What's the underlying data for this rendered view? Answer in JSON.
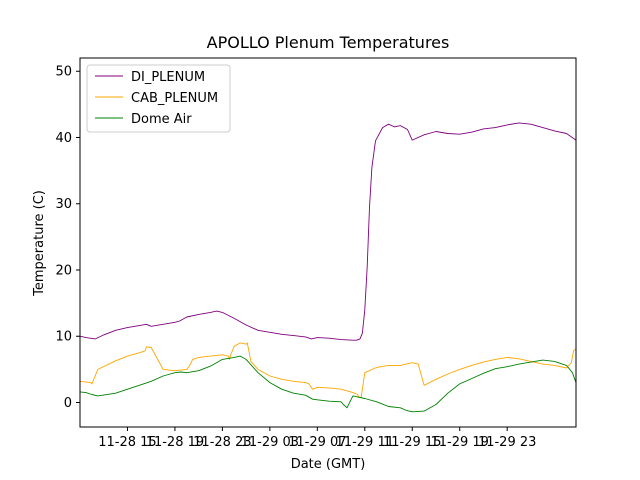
{
  "chart_data": {
    "type": "line",
    "title": "APOLLO Plenum Temperatures",
    "xlabel": "Date (GMT)",
    "ylabel": "Temperature (C)",
    "xlim": [
      0,
      41.8
    ],
    "ylim": [
      -3.7,
      52
    ],
    "grid": false,
    "legend_position": "top-left",
    "x_ticks": [
      {
        "x": 4,
        "label": "11-28 15"
      },
      {
        "x": 8,
        "label": "11-28 19"
      },
      {
        "x": 12,
        "label": "11-28 23"
      },
      {
        "x": 16,
        "label": "11-29 03"
      },
      {
        "x": 20,
        "label": "11-29 07"
      },
      {
        "x": 24,
        "label": "11-29 11"
      },
      {
        "x": 28,
        "label": "11-29 15"
      },
      {
        "x": 32,
        "label": "11-29 19"
      },
      {
        "x": 36,
        "label": "11-29 23"
      }
    ],
    "y_ticks": [
      0,
      10,
      20,
      30,
      40,
      50
    ],
    "series": [
      {
        "name": "DI_PLENUM",
        "color": "#800080",
        "x": [
          0,
          0.5,
          1.3,
          2,
          3,
          4,
          5,
          5.6,
          6,
          7,
          8,
          8.4,
          9,
          10,
          11,
          11.5,
          12,
          13,
          14,
          15,
          16,
          17,
          18,
          19,
          19.5,
          20,
          21,
          22,
          23,
          23.3,
          23.6,
          23.8,
          24.0,
          24.2,
          24.4,
          24.6,
          24.9,
          25.5,
          26,
          26.5,
          27,
          27.6,
          28,
          29,
          30,
          31,
          32,
          33,
          34,
          35,
          36,
          37,
          38,
          39,
          40,
          41,
          41.8
        ],
        "y": [
          10.0,
          9.8,
          9.6,
          10.2,
          10.9,
          11.3,
          11.6,
          11.8,
          11.5,
          11.8,
          12.1,
          12.3,
          12.9,
          13.3,
          13.6,
          13.8,
          13.6,
          12.7,
          11.7,
          10.9,
          10.6,
          10.3,
          10.1,
          9.9,
          9.6,
          9.8,
          9.7,
          9.5,
          9.4,
          9.4,
          9.6,
          10.5,
          14.0,
          20.5,
          29.5,
          35.5,
          39.5,
          41.5,
          42.0,
          41.6,
          41.8,
          41.2,
          39.6,
          40.4,
          40.9,
          40.6,
          40.5,
          40.8,
          41.3,
          41.5,
          41.9,
          42.2,
          42.0,
          41.5,
          41.0,
          40.6,
          39.6
        ]
      },
      {
        "name": "CAB_PLENUM",
        "color": "#ffa500",
        "x": [
          0,
          0.9,
          1.0,
          1.5,
          3,
          4,
          5,
          5.5,
          5.6,
          6,
          7,
          8,
          9,
          9.2,
          9.5,
          10,
          11,
          12,
          12.5,
          12.6,
          12.7,
          13,
          13.5,
          14,
          14.1,
          14.4,
          15,
          16,
          17,
          18,
          19,
          19.3,
          19.6,
          20,
          21,
          22,
          23,
          23.4,
          23.5,
          23.7,
          24,
          25,
          26,
          27,
          28,
          28.5,
          29,
          30,
          31,
          32,
          33,
          34,
          35,
          36,
          37,
          38,
          39,
          40,
          41,
          41.4,
          41.6,
          41.8
        ],
        "y": [
          3.2,
          3.0,
          2.8,
          5.0,
          6.3,
          7.0,
          7.5,
          7.8,
          8.4,
          8.3,
          5.0,
          4.8,
          5.0,
          5.5,
          6.5,
          6.8,
          7.0,
          7.2,
          7.0,
          6.5,
          7.2,
          8.5,
          9.0,
          8.8,
          9.0,
          6.2,
          5.0,
          4.0,
          3.5,
          3.2,
          3.0,
          2.8,
          2.0,
          2.3,
          2.2,
          2.0,
          1.5,
          1.2,
          0.8,
          0.8,
          4.5,
          5.3,
          5.6,
          5.6,
          6.0,
          5.8,
          2.6,
          3.5,
          4.3,
          5.0,
          5.6,
          6.1,
          6.5,
          6.8,
          6.6,
          6.2,
          5.8,
          5.6,
          5.2,
          6.0,
          7.8,
          8.1
        ]
      },
      {
        "name": "Dome Air",
        "color": "#008000",
        "x": [
          0,
          0.5,
          1,
          1.5,
          3,
          4,
          5,
          6,
          7,
          8,
          8.5,
          9,
          10,
          11,
          12,
          13,
          13.5,
          14,
          15,
          16,
          17,
          18,
          19,
          19.3,
          19.6,
          20,
          21,
          22,
          22.2,
          22.5,
          23,
          24,
          25,
          26,
          27,
          27.5,
          28,
          29,
          30,
          31,
          32,
          33,
          34,
          35,
          36,
          37,
          38,
          39,
          40,
          41,
          41.5,
          41.8
        ],
        "y": [
          1.6,
          1.5,
          1.2,
          1.0,
          1.4,
          2.0,
          2.6,
          3.2,
          4.0,
          4.5,
          4.6,
          4.5,
          4.8,
          5.5,
          6.5,
          6.8,
          7.0,
          6.5,
          4.5,
          3.0,
          2.0,
          1.4,
          1.1,
          0.8,
          0.5,
          0.4,
          0.2,
          0.1,
          -0.3,
          -0.8,
          1.0,
          0.6,
          0.1,
          -0.6,
          -0.8,
          -1.2,
          -1.4,
          -1.3,
          -0.3,
          1.4,
          2.8,
          3.6,
          4.4,
          5.1,
          5.4,
          5.8,
          6.1,
          6.4,
          6.2,
          5.6,
          4.5,
          3.0
        ]
      }
    ]
  }
}
